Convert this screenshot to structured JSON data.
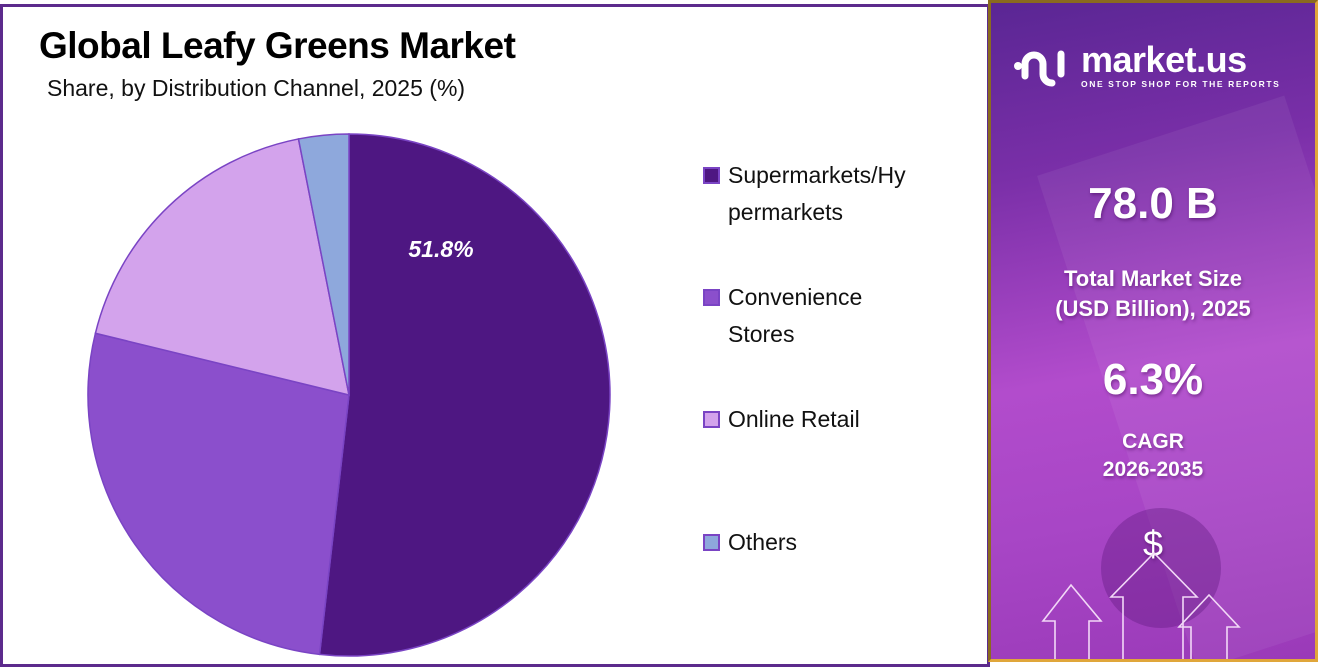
{
  "header": {
    "title": "Global Leafy Greens Market",
    "subtitle": "Share, by Distribution Channel, 2025 (%)"
  },
  "chart_data": {
    "type": "pie",
    "title": "Global Leafy Greens Market",
    "subtitle": "Share, by Distribution Channel, 2025 (%)",
    "categories": [
      "Supermarkets/Hypermarkets",
      "Convenience Stores",
      "Online Retail",
      "Others"
    ],
    "values": [
      51.8,
      27.0,
      18.1,
      3.1
    ],
    "colors": [
      "#4e1782",
      "#8b4fcc",
      "#d3a3ec",
      "#8ea8dc"
    ],
    "data_labels": [
      {
        "category": "Supermarkets/Hypermarkets",
        "text": "51.8%"
      }
    ],
    "start_angle_deg": 0,
    "direction": "clockwise",
    "legend_position": "right"
  },
  "pie_label": "51.8%",
  "legend": {
    "items": [
      {
        "label": "Supermarkets/Hy permarkets",
        "color": "#4e1782"
      },
      {
        "label": "Convenience Stores",
        "color": "#8b4fcc"
      },
      {
        "label": "Online Retail",
        "color": "#d3a3ec"
      },
      {
        "label": "Others",
        "color": "#8ea8dc"
      }
    ]
  },
  "sidebar": {
    "brand": {
      "name": "market.us",
      "tagline": "ONE STOP SHOP FOR THE REPORTS"
    },
    "market_size": {
      "value": "78.0 B",
      "label_line1": "Total Market Size",
      "label_line2": "(USD Billion), 2025"
    },
    "cagr": {
      "value": "6.3%",
      "label_line1": "CAGR",
      "label_line2": "2026-2035"
    },
    "currency_symbol": "$"
  }
}
